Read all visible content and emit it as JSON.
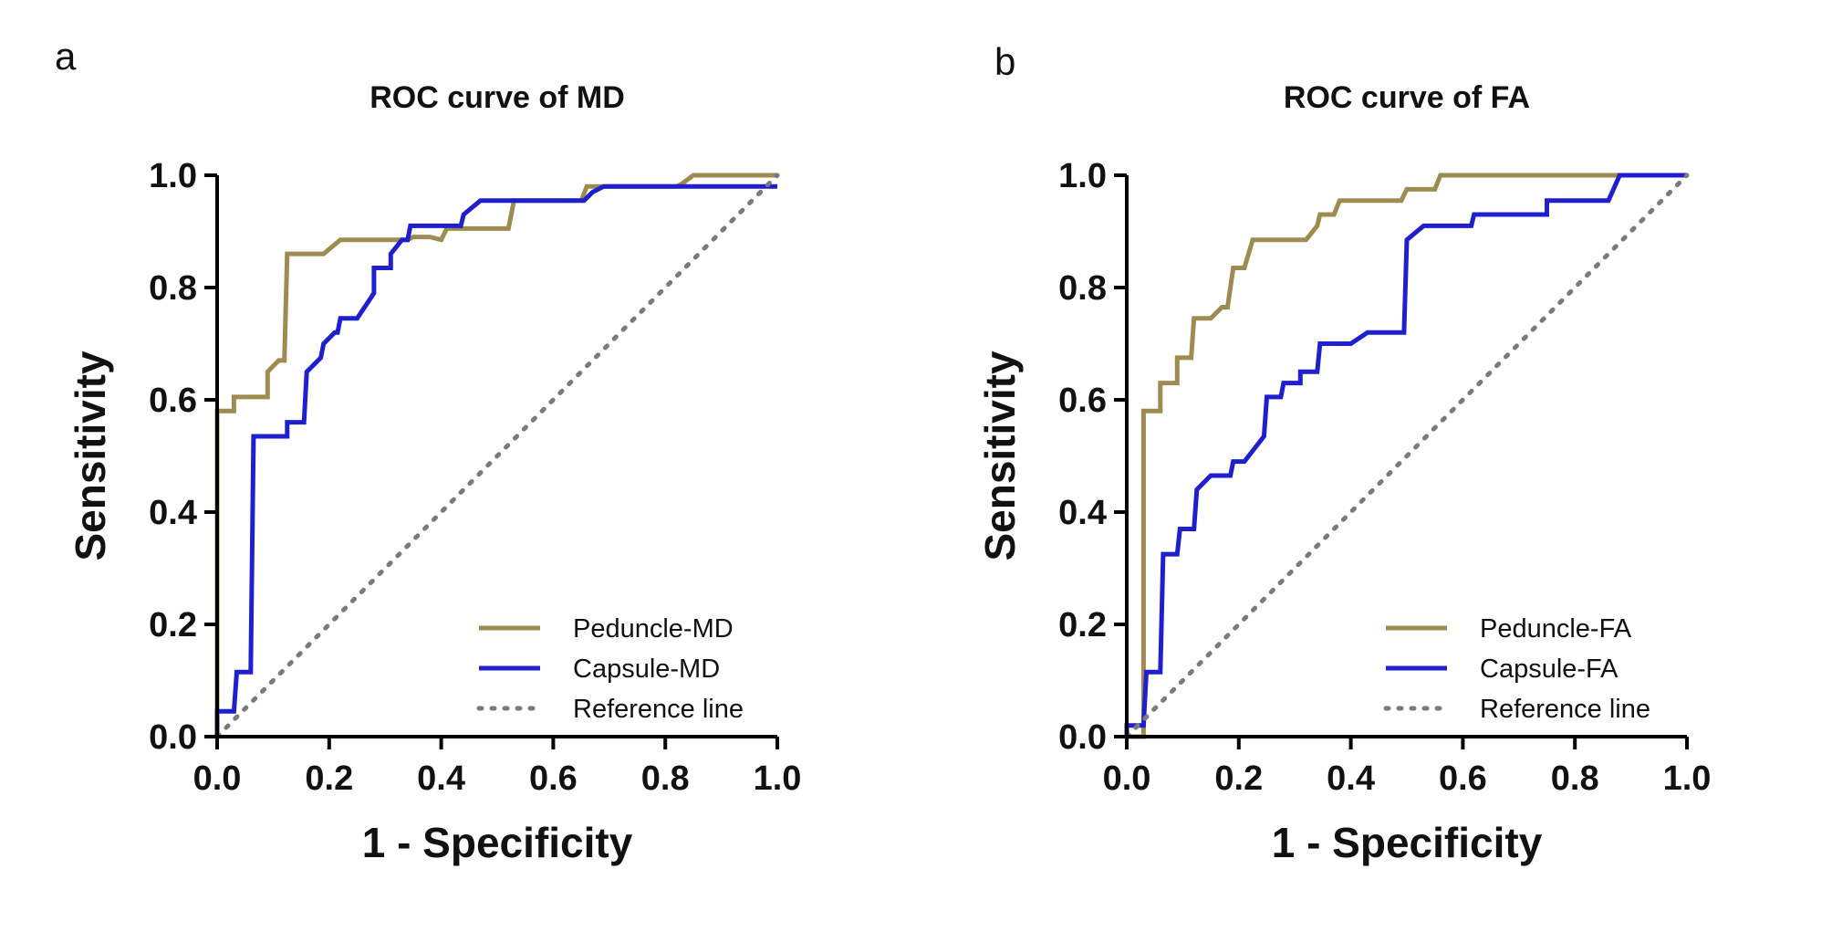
{
  "chart_data": [
    {
      "panel_label": "a",
      "type": "line",
      "title": "ROC curve of MD",
      "xlabel": "1 - Specificity",
      "ylabel": "Sensitivity",
      "xlim": [
        0,
        1
      ],
      "ylim": [
        0,
        1
      ],
      "xticks": [
        "0.0",
        "0.2",
        "0.4",
        "0.6",
        "0.8",
        "1.0"
      ],
      "yticks": [
        "0.0",
        "0.2",
        "0.4",
        "0.6",
        "0.8",
        "1.0"
      ],
      "grid": false,
      "legend_position": "bottom-right",
      "series": [
        {
          "name": "Peduncle-MD",
          "color": "#9E8B50",
          "style": "solid",
          "points": [
            [
              0,
              0
            ],
            [
              0,
              0.58
            ],
            [
              0.03,
              0.58
            ],
            [
              0.03,
              0.605
            ],
            [
              0.09,
              0.605
            ],
            [
              0.09,
              0.65
            ],
            [
              0.11,
              0.67
            ],
            [
              0.12,
              0.67
            ],
            [
              0.125,
              0.86
            ],
            [
              0.19,
              0.86
            ],
            [
              0.22,
              0.885
            ],
            [
              0.34,
              0.885
            ],
            [
              0.35,
              0.89
            ],
            [
              0.38,
              0.89
            ],
            [
              0.4,
              0.885
            ],
            [
              0.41,
              0.905
            ],
            [
              0.52,
              0.905
            ],
            [
              0.53,
              0.955
            ],
            [
              0.65,
              0.955
            ],
            [
              0.66,
              0.98
            ],
            [
              0.82,
              0.98
            ],
            [
              0.83,
              0.985
            ],
            [
              0.85,
              1.0
            ],
            [
              1.0,
              1.0
            ]
          ]
        },
        {
          "name": "Capsule-MD",
          "color": "#1F1FD0",
          "style": "solid",
          "points": [
            [
              0,
              0
            ],
            [
              0,
              0.045
            ],
            [
              0.03,
              0.045
            ],
            [
              0.035,
              0.115
            ],
            [
              0.06,
              0.115
            ],
            [
              0.065,
              0.535
            ],
            [
              0.125,
              0.535
            ],
            [
              0.125,
              0.56
            ],
            [
              0.155,
              0.56
            ],
            [
              0.16,
              0.65
            ],
            [
              0.185,
              0.675
            ],
            [
              0.19,
              0.7
            ],
            [
              0.21,
              0.72
            ],
            [
              0.215,
              0.72
            ],
            [
              0.22,
              0.745
            ],
            [
              0.25,
              0.745
            ],
            [
              0.28,
              0.79
            ],
            [
              0.28,
              0.835
            ],
            [
              0.31,
              0.835
            ],
            [
              0.31,
              0.86
            ],
            [
              0.33,
              0.885
            ],
            [
              0.34,
              0.885
            ],
            [
              0.345,
              0.91
            ],
            [
              0.435,
              0.91
            ],
            [
              0.44,
              0.93
            ],
            [
              0.47,
              0.955
            ],
            [
              0.655,
              0.955
            ],
            [
              0.67,
              0.97
            ],
            [
              0.69,
              0.98
            ],
            [
              1.0,
              0.98
            ]
          ]
        },
        {
          "name": "Reference line",
          "color": "#7A7A7A",
          "style": "dotted",
          "points": [
            [
              0,
              0
            ],
            [
              1,
              1
            ]
          ]
        }
      ]
    },
    {
      "panel_label": "b",
      "type": "line",
      "title": "ROC curve of FA",
      "xlabel": "1 - Specificity",
      "ylabel": "Sensitivity",
      "xlim": [
        0,
        1
      ],
      "ylim": [
        0,
        1
      ],
      "xticks": [
        "0.0",
        "0.2",
        "0.4",
        "0.6",
        "0.8",
        "1.0"
      ],
      "yticks": [
        "0.0",
        "0.2",
        "0.4",
        "0.6",
        "0.8",
        "1.0"
      ],
      "grid": false,
      "legend_position": "bottom-right",
      "series": [
        {
          "name": "Peduncle-FA",
          "color": "#9E8B50",
          "style": "solid",
          "points": [
            [
              0,
              0
            ],
            [
              0.03,
              0
            ],
            [
              0.03,
              0.58
            ],
            [
              0.06,
              0.58
            ],
            [
              0.06,
              0.63
            ],
            [
              0.09,
              0.63
            ],
            [
              0.09,
              0.675
            ],
            [
              0.115,
              0.675
            ],
            [
              0.12,
              0.745
            ],
            [
              0.15,
              0.745
            ],
            [
              0.17,
              0.765
            ],
            [
              0.18,
              0.765
            ],
            [
              0.19,
              0.835
            ],
            [
              0.21,
              0.835
            ],
            [
              0.225,
              0.885
            ],
            [
              0.32,
              0.885
            ],
            [
              0.34,
              0.91
            ],
            [
              0.345,
              0.93
            ],
            [
              0.37,
              0.93
            ],
            [
              0.38,
              0.955
            ],
            [
              0.49,
              0.955
            ],
            [
              0.5,
              0.975
            ],
            [
              0.55,
              0.975
            ],
            [
              0.56,
              1.0
            ],
            [
              1.0,
              1.0
            ]
          ]
        },
        {
          "name": "Capsule-FA",
          "color": "#1F1FD0",
          "style": "solid",
          "points": [
            [
              0,
              0
            ],
            [
              0,
              0.02
            ],
            [
              0.03,
              0.02
            ],
            [
              0.035,
              0.115
            ],
            [
              0.06,
              0.115
            ],
            [
              0.065,
              0.325
            ],
            [
              0.09,
              0.325
            ],
            [
              0.095,
              0.37
            ],
            [
              0.12,
              0.37
            ],
            [
              0.125,
              0.44
            ],
            [
              0.15,
              0.465
            ],
            [
              0.185,
              0.465
            ],
            [
              0.19,
              0.49
            ],
            [
              0.21,
              0.49
            ],
            [
              0.245,
              0.535
            ],
            [
              0.25,
              0.605
            ],
            [
              0.275,
              0.605
            ],
            [
              0.28,
              0.63
            ],
            [
              0.31,
              0.63
            ],
            [
              0.31,
              0.65
            ],
            [
              0.34,
              0.65
            ],
            [
              0.345,
              0.7
            ],
            [
              0.4,
              0.7
            ],
            [
              0.43,
              0.72
            ],
            [
              0.495,
              0.72
            ],
            [
              0.5,
              0.885
            ],
            [
              0.53,
              0.91
            ],
            [
              0.615,
              0.91
            ],
            [
              0.62,
              0.93
            ],
            [
              0.75,
              0.93
            ],
            [
              0.75,
              0.955
            ],
            [
              0.86,
              0.955
            ],
            [
              0.88,
              1.0
            ],
            [
              1.0,
              1.0
            ]
          ]
        },
        {
          "name": "Reference line",
          "color": "#7A7A7A",
          "style": "dotted",
          "points": [
            [
              0,
              0
            ],
            [
              1,
              1
            ]
          ]
        }
      ]
    }
  ]
}
